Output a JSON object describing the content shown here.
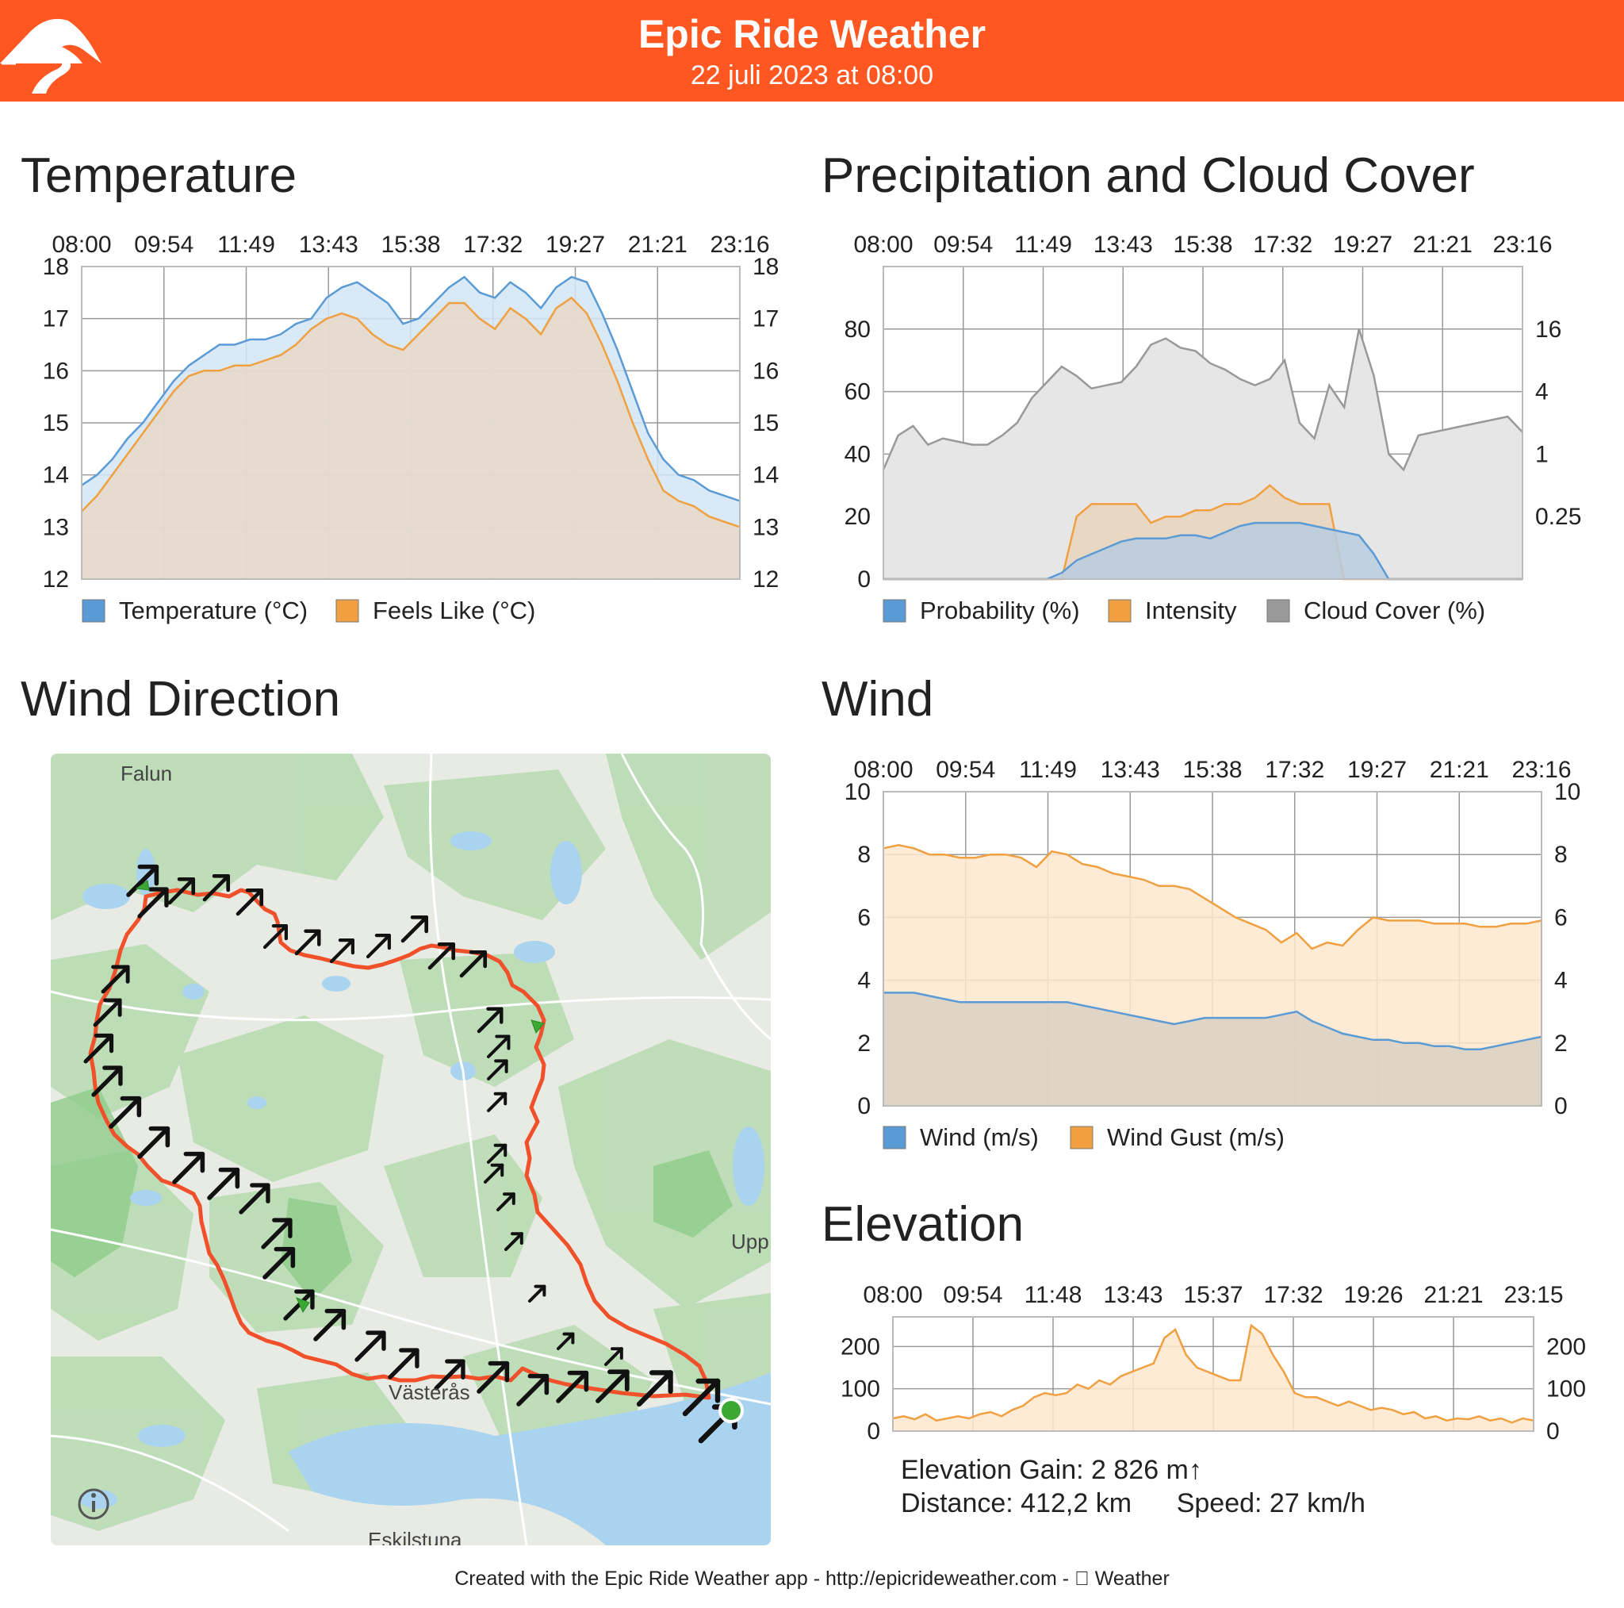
{
  "header": {
    "title": "Epic Ride Weather",
    "subtitle": "22 juli 2023 at 08:00",
    "logo_icon": "mountain-road-logo-icon",
    "background_color": "#ff5722"
  },
  "sections": {
    "temperature": "Temperature",
    "precipitation": "Precipitation and Cloud Cover",
    "wind_direction": "Wind Direction",
    "wind": "Wind",
    "elevation": "Elevation"
  },
  "chart_data": [
    {
      "id": "temperature",
      "type": "area",
      "x_ticks": [
        "08:00",
        "09:54",
        "11:49",
        "13:43",
        "15:38",
        "17:32",
        "19:27",
        "21:21",
        "23:16"
      ],
      "ylim": [
        12,
        18
      ],
      "y_ticks": [
        12,
        13,
        14,
        15,
        16,
        17,
        18
      ],
      "y_ticks_right": [
        12,
        13,
        14,
        15,
        16,
        17,
        18
      ],
      "grid": true,
      "legend_position": "bottom",
      "series": [
        {
          "name": "Temperature (°C)",
          "color": "#5b9bd5",
          "fill": "#d4e5f5",
          "values": [
            13.8,
            14.0,
            14.3,
            14.7,
            15.0,
            15.4,
            15.8,
            16.1,
            16.3,
            16.5,
            16.5,
            16.6,
            16.6,
            16.7,
            16.9,
            17.0,
            17.4,
            17.6,
            17.7,
            17.5,
            17.3,
            16.9,
            17.0,
            17.3,
            17.6,
            17.8,
            17.5,
            17.4,
            17.7,
            17.5,
            17.2,
            17.6,
            17.8,
            17.7,
            17.1,
            16.4,
            15.6,
            14.8,
            14.3,
            14.0,
            13.9,
            13.7,
            13.6,
            13.5
          ]
        },
        {
          "name": "Feels Like (°C)",
          "color": "#f0a040",
          "fill": "#e6d8c8",
          "values": [
            13.3,
            13.6,
            14.0,
            14.4,
            14.8,
            15.2,
            15.6,
            15.9,
            16.0,
            16.0,
            16.1,
            16.1,
            16.2,
            16.3,
            16.5,
            16.8,
            17.0,
            17.1,
            17.0,
            16.7,
            16.5,
            16.4,
            16.7,
            17.0,
            17.3,
            17.3,
            17.0,
            16.8,
            17.2,
            17.0,
            16.7,
            17.2,
            17.4,
            17.1,
            16.5,
            15.8,
            15.0,
            14.3,
            13.7,
            13.5,
            13.4,
            13.2,
            13.1,
            13.0
          ]
        }
      ]
    },
    {
      "id": "precipitation",
      "type": "area",
      "x_ticks": [
        "08:00",
        "09:54",
        "11:49",
        "13:43",
        "15:38",
        "17:32",
        "19:27",
        "21:21",
        "23:16"
      ],
      "ylim": [
        0,
        100
      ],
      "y_ticks": [
        0,
        20,
        40,
        60,
        80
      ],
      "y_ticks_right": [
        "0.25",
        "1",
        "4",
        "16"
      ],
      "grid": true,
      "legend_position": "bottom",
      "series": [
        {
          "name": "Probability (%)",
          "color": "#5b9bd5",
          "fill": "#b8cde0",
          "values": [
            0,
            0,
            0,
            0,
            0,
            0,
            0,
            0,
            0,
            0,
            0,
            0,
            2,
            6,
            8,
            10,
            12,
            13,
            13,
            13,
            14,
            14,
            13,
            15,
            17,
            18,
            18,
            18,
            18,
            17,
            16,
            15,
            14,
            8,
            0,
            0,
            0,
            0,
            0,
            0,
            0,
            0,
            0,
            0
          ]
        },
        {
          "name": "Intensity",
          "color": "#f0a040",
          "fill": "#e8d4bc",
          "values": [
            0,
            0,
            0,
            0,
            0,
            0,
            0,
            0,
            0,
            0,
            0,
            0,
            0,
            20,
            24,
            24,
            24,
            24,
            18,
            20,
            20,
            22,
            22,
            24,
            24,
            26,
            30,
            26,
            24,
            24,
            24,
            0,
            0,
            0,
            0,
            0,
            0,
            0,
            0,
            0,
            0,
            0,
            0,
            0
          ]
        },
        {
          "name": "Cloud Cover (%)",
          "color": "#999999",
          "fill": "#e6e6e6",
          "values": [
            35,
            46,
            49,
            43,
            45,
            44,
            43,
            43,
            46,
            50,
            58,
            63,
            68,
            65,
            61,
            62,
            63,
            68,
            75,
            77,
            74,
            73,
            69,
            67,
            64,
            62,
            64,
            70,
            50,
            45,
            62,
            55,
            80,
            65,
            40,
            35,
            46,
            47,
            48,
            49,
            50,
            51,
            52,
            47
          ]
        }
      ]
    },
    {
      "id": "wind",
      "type": "area",
      "x_ticks": [
        "08:00",
        "09:54",
        "11:49",
        "13:43",
        "15:38",
        "17:32",
        "19:27",
        "21:21",
        "23:16"
      ],
      "ylim": [
        0,
        10
      ],
      "y_ticks": [
        0,
        2,
        4,
        6,
        8,
        10
      ],
      "y_ticks_right": [
        0,
        2,
        4,
        6,
        8,
        10
      ],
      "grid": true,
      "legend_position": "bottom",
      "series": [
        {
          "name": "Wind (m/s)",
          "color": "#5b9bd5",
          "fill": "#d9d1c4",
          "values": [
            3.6,
            3.6,
            3.6,
            3.5,
            3.4,
            3.3,
            3.3,
            3.3,
            3.3,
            3.3,
            3.3,
            3.3,
            3.3,
            3.2,
            3.1,
            3.0,
            2.9,
            2.8,
            2.7,
            2.6,
            2.7,
            2.8,
            2.8,
            2.8,
            2.8,
            2.8,
            2.9,
            3.0,
            2.7,
            2.5,
            2.3,
            2.2,
            2.1,
            2.1,
            2.0,
            2.0,
            1.9,
            1.9,
            1.8,
            1.8,
            1.9,
            2.0,
            2.1,
            2.2
          ]
        },
        {
          "name": "Wind Gust (m/s)",
          "color": "#f0a040",
          "fill": "#fde7ce",
          "values": [
            8.2,
            8.3,
            8.2,
            8.0,
            8.0,
            7.9,
            7.9,
            8.0,
            8.0,
            7.9,
            7.6,
            8.1,
            8.0,
            7.7,
            7.6,
            7.4,
            7.3,
            7.2,
            7.0,
            7.0,
            6.9,
            6.6,
            6.3,
            6.0,
            5.8,
            5.6,
            5.2,
            5.5,
            5.0,
            5.2,
            5.1,
            5.6,
            6.0,
            5.9,
            5.9,
            5.9,
            5.8,
            5.8,
            5.8,
            5.7,
            5.7,
            5.8,
            5.8,
            5.9
          ]
        }
      ]
    },
    {
      "id": "elevation",
      "type": "area",
      "x_ticks": [
        "08:00",
        "09:54",
        "11:48",
        "13:43",
        "15:37",
        "17:32",
        "19:26",
        "21:21",
        "23:15"
      ],
      "ylim": [
        0,
        270
      ],
      "y_ticks": [
        0,
        100,
        200
      ],
      "y_ticks_right": [
        0,
        100,
        200
      ],
      "grid": true,
      "series": [
        {
          "name": "Elevation",
          "color": "#f0a040",
          "fill": "#fde7ce",
          "values": [
            30,
            35,
            28,
            40,
            25,
            30,
            35,
            30,
            40,
            45,
            35,
            50,
            60,
            80,
            90,
            85,
            90,
            110,
            100,
            120,
            110,
            130,
            140,
            150,
            160,
            220,
            240,
            180,
            150,
            140,
            130,
            120,
            120,
            250,
            230,
            180,
            140,
            90,
            80,
            80,
            70,
            60,
            70,
            60,
            50,
            55,
            50,
            40,
            45,
            30,
            35,
            25,
            30,
            28,
            35,
            25,
            30,
            20,
            30,
            25
          ]
        }
      ]
    }
  ],
  "legends": {
    "temperature": [
      "Temperature (°C)",
      "Feels Like (°C)"
    ],
    "precipitation": [
      "Probability (%)",
      "Intensity",
      "Cloud Cover (%)"
    ],
    "wind": [
      "Wind (m/s)",
      "Wind Gust (m/s)"
    ]
  },
  "map": {
    "labels": [
      {
        "text": "Falun"
      },
      {
        "text": "Upp"
      },
      {
        "text": "Västerås"
      },
      {
        "text": "Eskilstuna"
      }
    ],
    "info_icon": "info-icon",
    "start_marker_color": "#3aa832",
    "route_color": "#f0502a"
  },
  "elevation_stats": {
    "gain": "Elevation Gain: 2 826 m↑",
    "distance": "Distance: 412,2 km",
    "speed": "Speed: 27 km/h"
  },
  "footer": {
    "text": "Created with the Epic Ride Weather app - http://epicrideweather.com -  Weather"
  }
}
